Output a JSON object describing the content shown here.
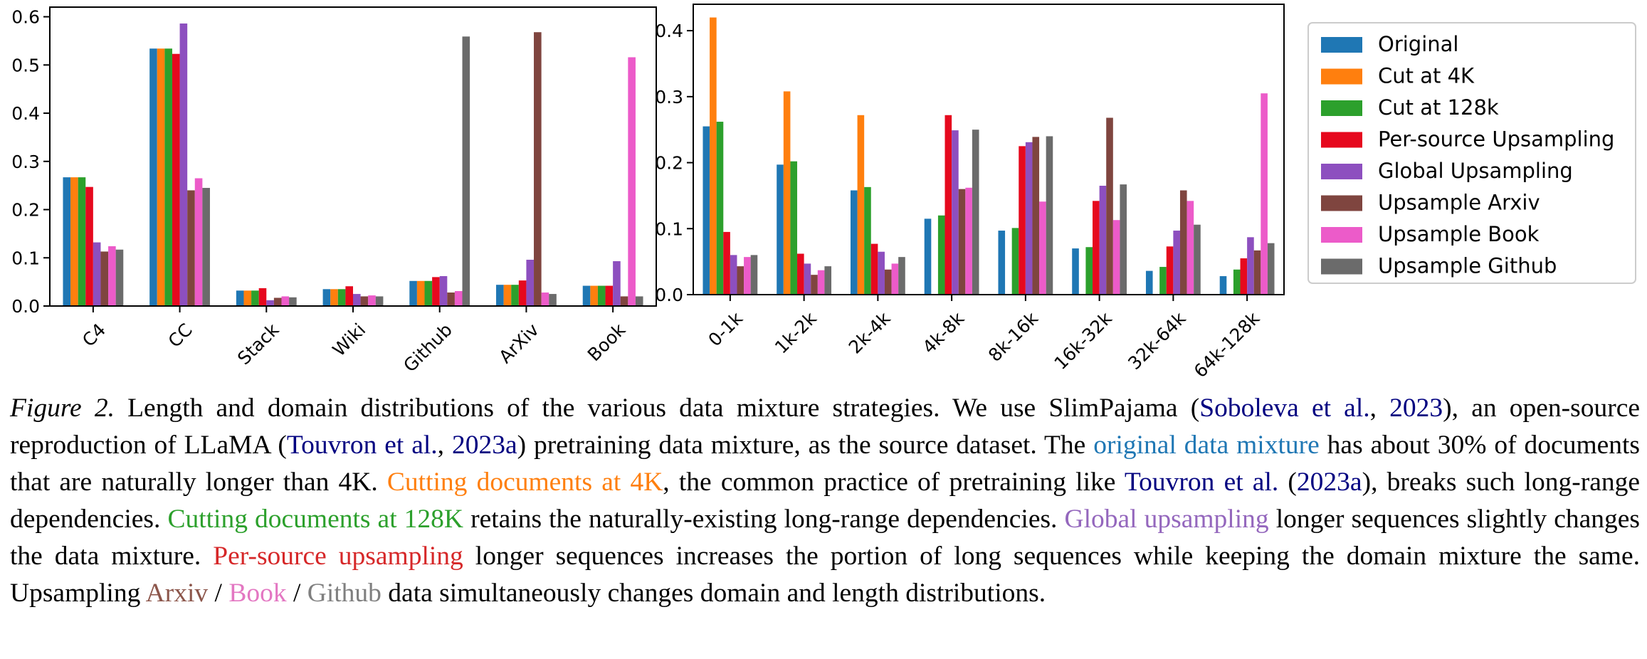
{
  "colors": {
    "Original": "#1f77b4",
    "Cut at 4K": "#ff7f0e",
    "Cut at 128k": "#2ca02c",
    "Per-source Upsampling": "#e6091e",
    "Global Upsampling": "#8d4fbf",
    "Upsample Arxiv": "#7f453f",
    "Upsample Book": "#ec5bc9",
    "Upsample Github": "#6b6b6b"
  },
  "legend": [
    "Original",
    "Cut at 4K",
    "Cut at 128k",
    "Per-source Upsampling",
    "Global Upsampling",
    "Upsample Arxiv",
    "Upsample Book",
    "Upsample Github"
  ],
  "chart_data": [
    {
      "type": "bar",
      "title": "",
      "xlabel": "",
      "ylabel": "",
      "ylim": [
        0,
        0.62
      ],
      "yticks": [
        "0.0",
        "0.1",
        "0.2",
        "0.3",
        "0.4",
        "0.5",
        "0.6"
      ],
      "grid": false,
      "categories": [
        "C4",
        "CC",
        "Stack",
        "Wiki",
        "Github",
        "ArXiv",
        "Book"
      ],
      "series": [
        {
          "name": "Original",
          "values": [
            0.267,
            0.534,
            0.032,
            0.035,
            0.052,
            0.044,
            0.042
          ]
        },
        {
          "name": "Cut at 4K",
          "values": [
            0.267,
            0.534,
            0.032,
            0.035,
            0.052,
            0.044,
            0.042
          ]
        },
        {
          "name": "Cut at 128k",
          "values": [
            0.267,
            0.534,
            0.032,
            0.035,
            0.052,
            0.044,
            0.042
          ]
        },
        {
          "name": "Per-source Upsampling",
          "values": [
            0.247,
            0.523,
            0.037,
            0.041,
            0.06,
            0.053,
            0.042
          ]
        },
        {
          "name": "Global Upsampling",
          "values": [
            0.132,
            0.586,
            0.012,
            0.025,
            0.062,
            0.096,
            0.093
          ]
        },
        {
          "name": "Upsample Arxiv",
          "values": [
            0.113,
            0.24,
            0.017,
            0.02,
            0.028,
            0.568,
            0.02
          ]
        },
        {
          "name": "Upsample Book",
          "values": [
            0.124,
            0.265,
            0.02,
            0.022,
            0.031,
            0.028,
            0.516
          ]
        },
        {
          "name": "Upsample Github",
          "values": [
            0.117,
            0.245,
            0.018,
            0.02,
            0.559,
            0.025,
            0.02
          ]
        }
      ]
    },
    {
      "type": "bar",
      "title": "",
      "xlabel": "",
      "ylabel": "",
      "ylim": [
        0,
        0.44
      ],
      "yticks": [
        "0.0",
        "0.1",
        "0.2",
        "0.3",
        "0.4"
      ],
      "grid": false,
      "legend_position": "outside right",
      "categories": [
        "0-1k",
        "1k-2k",
        "2k-4k",
        "4k-8k",
        "8k-16k",
        "16k-32k",
        "32k-64k",
        "64k-128k"
      ],
      "series": [
        {
          "name": "Original",
          "values": [
            0.255,
            0.197,
            0.158,
            0.115,
            0.097,
            0.07,
            0.036,
            0.028
          ]
        },
        {
          "name": "Cut at 4K",
          "values": [
            0.42,
            0.308,
            0.272,
            0,
            0,
            0,
            0,
            0
          ]
        },
        {
          "name": "Cut at 128k",
          "values": [
            0.262,
            0.202,
            0.163,
            0.12,
            0.101,
            0.072,
            0.042,
            0.038
          ]
        },
        {
          "name": "Per-source Upsampling",
          "values": [
            0.095,
            0.062,
            0.077,
            0.272,
            0.225,
            0.142,
            0.073,
            0.055
          ]
        },
        {
          "name": "Global Upsampling",
          "values": [
            0.06,
            0.047,
            0.065,
            0.249,
            0.231,
            0.165,
            0.097,
            0.087
          ]
        },
        {
          "name": "Upsample Arxiv",
          "values": [
            0.043,
            0.03,
            0.038,
            0.16,
            0.239,
            0.268,
            0.158,
            0.067
          ]
        },
        {
          "name": "Upsample Book",
          "values": [
            0.057,
            0.037,
            0.047,
            0.162,
            0.141,
            0.113,
            0.142,
            0.305
          ]
        },
        {
          "name": "Upsample Github",
          "values": [
            0.06,
            0.043,
            0.057,
            0.25,
            0.24,
            0.167,
            0.106,
            0.078
          ]
        }
      ]
    }
  ],
  "caption": {
    "label": "Figure 2.",
    "t1": "Length and domain distributions of the various data mixture strategies.  We use SlimPajama (",
    "cite1a": "Soboleva et al.",
    "t2": ", ",
    "cite1b": "2023",
    "t3": "), an open-source reproduction of LLaMA (",
    "cite2a": "Touvron et al.",
    "t4": ", ",
    "cite2b": "2023a",
    "t5": ") pretraining data mixture, as the source dataset. The ",
    "original": "original data mixture",
    "t6": " has about 30% of documents that are naturally longer than 4K. ",
    "cut4k": "Cutting documents at 4K",
    "t7": ", the common practice of pretraining like ",
    "cite3a": "Touvron et al.",
    "t8": " (",
    "cite3b": "2023a",
    "t9": "), breaks such long-range dependencies. ",
    "cut128k": "Cutting documents at 128K",
    "t10": " retains the naturally-existing long-range dependencies. ",
    "global": "Global upsampling",
    "t11": " longer sequences slightly changes the data mixture. ",
    "persource": "Per-source upsampling",
    "t12": " longer sequences increases the portion of long sequences while keeping the domain mixture the same. Upsampling ",
    "arxiv": "Arxiv",
    "t13": " / ",
    "book": "Book",
    "t14": " / ",
    "github": "Github",
    "t15": " data simultaneously changes domain and length distributions."
  }
}
